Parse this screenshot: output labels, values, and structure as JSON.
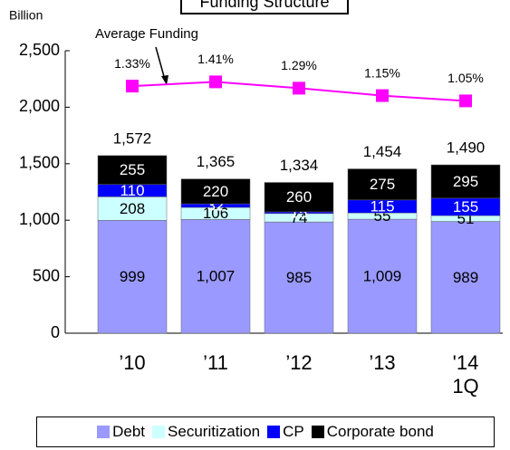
{
  "chart_data": {
    "type": "stacked_bar_line",
    "title": "Funding Structure",
    "y_label": "Billion",
    "annotation": "Average Funding",
    "categories": [
      "’10",
      "’11",
      "’12",
      "’13",
      "'14\n1Q"
    ],
    "ylim": [
      0,
      2500
    ],
    "yticks": [
      0,
      500,
      {
        "value": 1000,
        "label": "1,000"
      },
      {
        "value": 1500,
        "label": "1,500"
      },
      {
        "value": 2000,
        "label": "2,000"
      },
      {
        "value": 2500,
        "label": "2,500"
      }
    ],
    "series": [
      {
        "name": "Debt",
        "color": "#9999ff",
        "values": [
          999,
          1007,
          985,
          1009,
          989
        ],
        "value_labels": [
          "999",
          "1,007",
          "985",
          "1,009",
          "989"
        ]
      },
      {
        "name": "Securitization",
        "color": "#ccffff",
        "values": [
          208,
          106,
          74,
          55,
          51
        ]
      },
      {
        "name": "CP",
        "color": "#0000ff",
        "values": [
          110,
          32,
          15,
          115,
          155
        ]
      },
      {
        "name": "Corporate bond",
        "color": "#000000",
        "values": [
          255,
          220,
          260,
          275,
          295
        ]
      },
      {
        "name": "Average Funding",
        "type": "line",
        "axis": "y2",
        "color": "#ff00ff",
        "values": [
          1.33,
          1.41,
          1.29,
          1.15,
          1.05
        ],
        "value_labels": [
          "1.33%",
          "1.41%",
          "1.29%",
          "1.15%",
          "1.05%"
        ]
      }
    ],
    "totals": [
      1572,
      1365,
      1334,
      1454,
      1490
    ],
    "totals_labels": [
      "1,572",
      "1,365",
      "1,334",
      "1,454",
      "1,490"
    ],
    "y2lim": [
      -3.35,
      2.0
    ],
    "legend": "bottom"
  }
}
